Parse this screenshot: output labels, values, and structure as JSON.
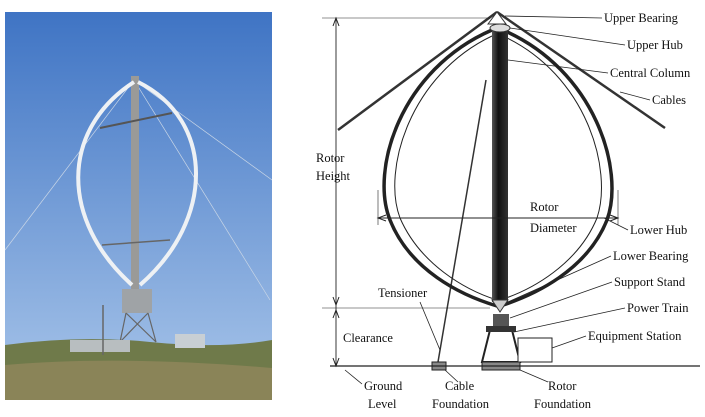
{
  "labels": [
    {
      "lines": [
        "Upper Bearing"
      ]
    },
    {
      "lines": [
        "Upper Hub"
      ]
    },
    {
      "lines": [
        "Central Column"
      ]
    },
    {
      "lines": [
        "Cables"
      ]
    },
    {
      "lines": [
        "Rotor",
        "Height"
      ]
    },
    {
      "lines": [
        "Rotor",
        "Diameter"
      ]
    },
    {
      "lines": [
        "Lower Hub"
      ]
    },
    {
      "lines": [
        "Lower Bearing"
      ]
    },
    {
      "lines": [
        "Support Stand"
      ]
    },
    {
      "lines": [
        "Power Train"
      ]
    },
    {
      "lines": [
        "Equipment Station"
      ]
    },
    {
      "lines": [
        "Tensioner"
      ]
    },
    {
      "lines": [
        "Clearance"
      ]
    },
    {
      "lines": [
        "Ground",
        "Level"
      ]
    },
    {
      "lines": [
        "Cable",
        "Foundation"
      ]
    },
    {
      "lines": [
        "Rotor",
        "Foundation"
      ]
    }
  ]
}
